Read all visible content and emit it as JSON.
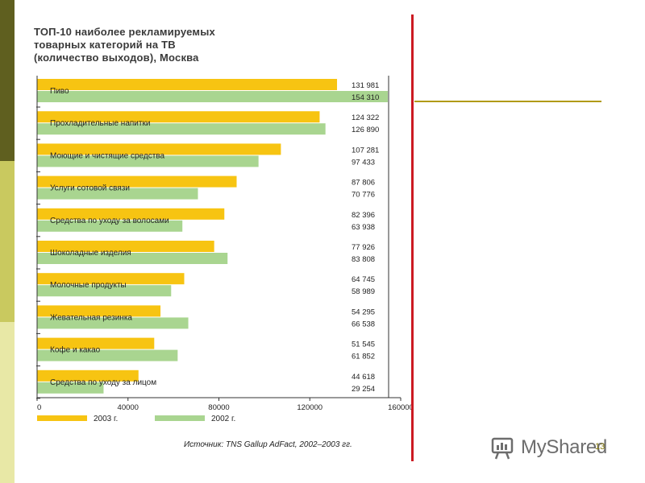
{
  "slide": {
    "slide_number": "13",
    "watermark": {
      "text": "MyShared",
      "icon": "presentation-board-icon"
    },
    "colors": {
      "accent_rule": "#b19a12",
      "border": "#cc1a22"
    }
  },
  "chart_data": {
    "type": "bar",
    "orientation": "horizontal",
    "title": "ТОП-10 наиболее рекламируемых\nтоварных категорий на ТВ\n(количество выходов), Москва",
    "categories": [
      "Пиво",
      "Прохладительные напитки",
      "Моющие и чистящие средства",
      "Услуги сотовой связи",
      "Средства по уходу за волосами",
      "Шоколадные изделия",
      "Молочные продукты",
      "Жевательная резинка",
      "Кофе и какао",
      "Средства по уходу за лицом"
    ],
    "series": [
      {
        "name": "2003 г.",
        "color": "#f7c412",
        "values": [
          131981,
          124322,
          107281,
          87806,
          82396,
          77926,
          64745,
          54295,
          51545,
          44618
        ],
        "labels": [
          "131 981",
          "124 322",
          "107 281",
          "87 806",
          "82 396",
          "77 926",
          "64 745",
          "54 295",
          "51 545",
          "44 618"
        ]
      },
      {
        "name": "2002 г.",
        "color": "#a9d590",
        "values": [
          154310,
          126890,
          97433,
          70776,
          63938,
          83808,
          58989,
          66538,
          61852,
          29254
        ],
        "labels": [
          "154 310",
          "126 890",
          "97 433",
          "70 776",
          "63 938",
          "83 808",
          "58 989",
          "66 538",
          "61 852",
          "29 254"
        ]
      }
    ],
    "xlim": [
      0,
      160000
    ],
    "xticks": [
      0,
      40000,
      80000,
      120000,
      160000
    ],
    "xtick_labels": [
      "0",
      "40000",
      "80000",
      "120000",
      "160000"
    ],
    "legend_position": "bottom",
    "source": "Источник: TNS Gallup AdFact, 2002–2003 гг."
  }
}
